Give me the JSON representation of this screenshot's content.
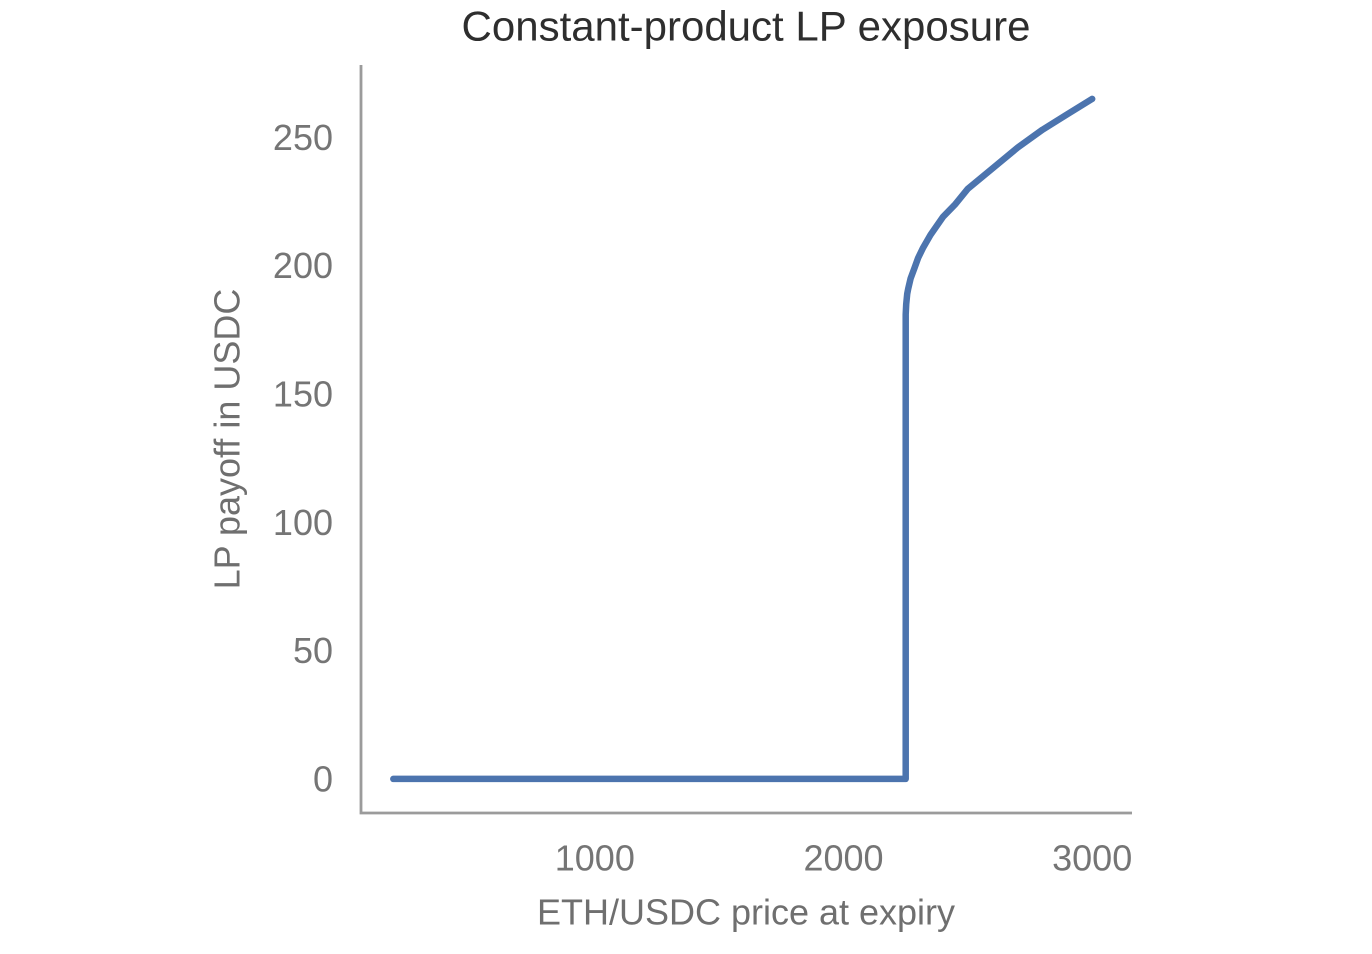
{
  "page": {
    "background": "#ffffff"
  },
  "colors": {
    "line": "#4c74ae",
    "spine": "#9b9b9b",
    "tick_label": "#757575",
    "axis_label": "#6f6f6f",
    "title": "#2e2e2e"
  },
  "chart_data": {
    "type": "line",
    "title": "Constant-product LP exposure",
    "xlabel": "ETH/USDC price at expiry",
    "ylabel": "LP payoff in USDC",
    "x_ticks": [
      1000,
      2000,
      3000
    ],
    "y_ticks": [
      0,
      50,
      100,
      150,
      200,
      250
    ],
    "xlim": [
      60,
      3160
    ],
    "ylim": [
      -13.3,
      278.2
    ],
    "grid": false,
    "legend": false,
    "series": [
      {
        "name": "LP payoff in USDC",
        "color": "#4c74ae",
        "points": [
          [
            190,
            0
          ],
          [
            500,
            0
          ],
          [
            1000,
            0
          ],
          [
            1500,
            0
          ],
          [
            2000,
            0
          ],
          [
            2250,
            0
          ],
          [
            2250,
            181
          ],
          [
            2252,
            185
          ],
          [
            2256,
            189
          ],
          [
            2260,
            191
          ],
          [
            2270,
            195
          ],
          [
            2285,
            199
          ],
          [
            2300,
            203
          ],
          [
            2320,
            207
          ],
          [
            2350,
            212
          ],
          [
            2400,
            219
          ],
          [
            2450,
            224
          ],
          [
            2500,
            230
          ],
          [
            2600,
            238
          ],
          [
            2700,
            246
          ],
          [
            2800,
            253
          ],
          [
            2900,
            259
          ],
          [
            3000,
            265
          ]
        ]
      }
    ]
  }
}
